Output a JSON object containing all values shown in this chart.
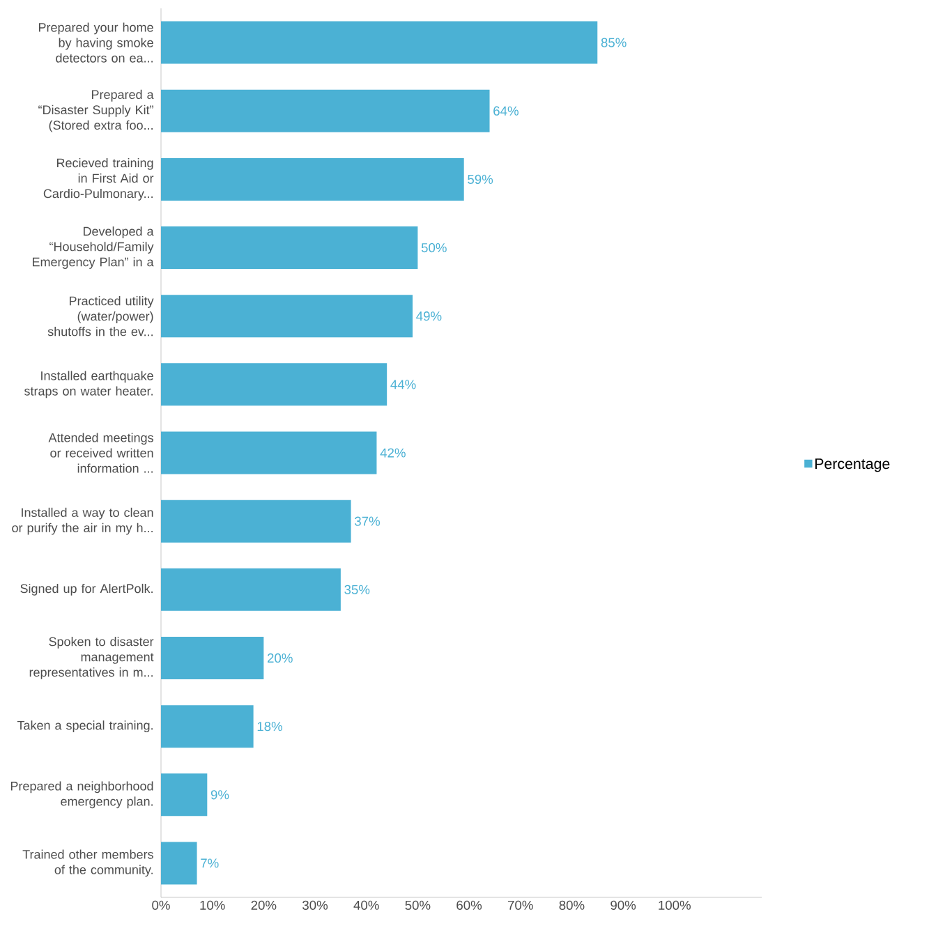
{
  "chart_data": {
    "type": "bar",
    "orientation": "horizontal",
    "categories": [
      "Prepared your home by having smoke detectors on ea...",
      "Prepared a “Disaster Supply Kit” (Stored extra foo...",
      "Recieved training in First Aid or Cardio-Pulmonary...",
      "Developed a “Household/Family Emergency Plan” in a",
      "Practiced utility (water/power) shutoffs in the ev...",
      "Installed earthquake straps on water heater.",
      "Attended meetings or received written information ...",
      "Installed a way to clean or purify the air in my h...",
      "Signed up for AlertPolk.",
      "Spoken to disaster management representatives in m...",
      "Taken a special training.",
      "Prepared a neighborhood emergency plan.",
      "Trained other members of the community."
    ],
    "series": [
      {
        "name": "Percentage",
        "color": "#4bb1d4",
        "values": [
          85,
          64,
          59,
          50,
          49,
          44,
          42,
          37,
          35,
          20,
          18,
          9,
          7
        ],
        "value_labels": [
          "85%",
          "64%",
          "59%",
          "50%",
          "49%",
          "44%",
          "42%",
          "37%",
          "35%",
          "20%",
          "18%",
          "9%",
          "7%"
        ]
      }
    ],
    "xlim": [
      0,
      117
    ],
    "xticks": [
      {
        "value": 0,
        "label": "0%"
      },
      {
        "value": 10,
        "label": "10%"
      },
      {
        "value": 20,
        "label": "20%"
      },
      {
        "value": 30,
        "label": "30%"
      },
      {
        "value": 40,
        "label": "40%"
      },
      {
        "value": 50,
        "label": "50%"
      },
      {
        "value": 60,
        "label": "60%"
      },
      {
        "value": 70,
        "label": "70%"
      },
      {
        "value": 80,
        "label": "80%"
      },
      {
        "value": 90,
        "label": "90%"
      },
      {
        "value": 100,
        "label": "100%"
      }
    ],
    "legend": "right",
    "grid": false
  }
}
